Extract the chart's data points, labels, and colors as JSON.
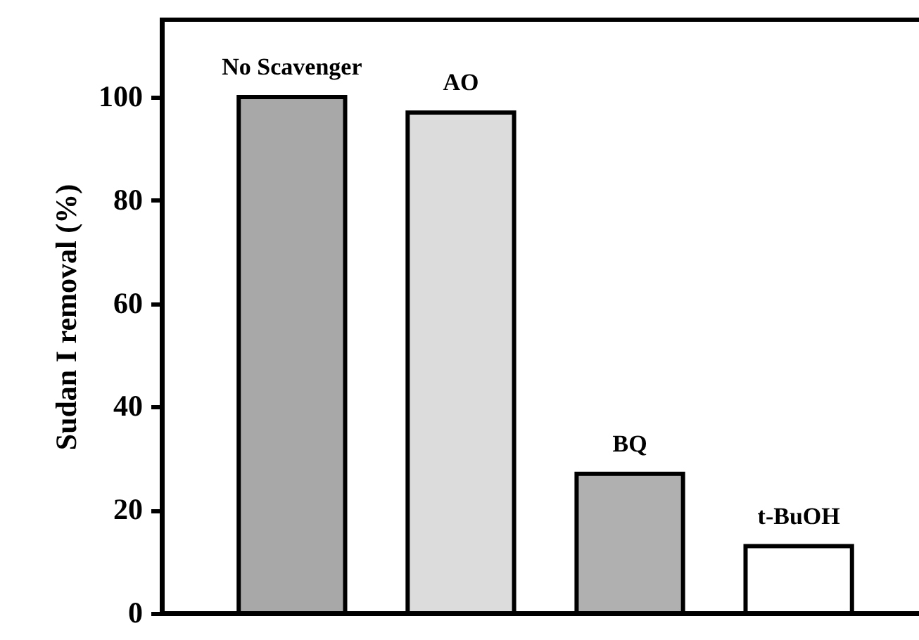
{
  "chart_data": {
    "type": "bar",
    "ylabel": "Sudan I removal (%)",
    "categories": [
      "No Scavenger",
      "AO",
      "BQ",
      "t-BuOH"
    ],
    "values": [
      100,
      97,
      27,
      13
    ],
    "colors": [
      "#a8a8a8",
      "#dcdcdc",
      "#b0b0b0",
      "#ffffff"
    ],
    "ylim": [
      0,
      115
    ],
    "yticks": [
      0,
      20,
      40,
      60,
      80,
      100
    ],
    "tick_labels": "y"
  }
}
